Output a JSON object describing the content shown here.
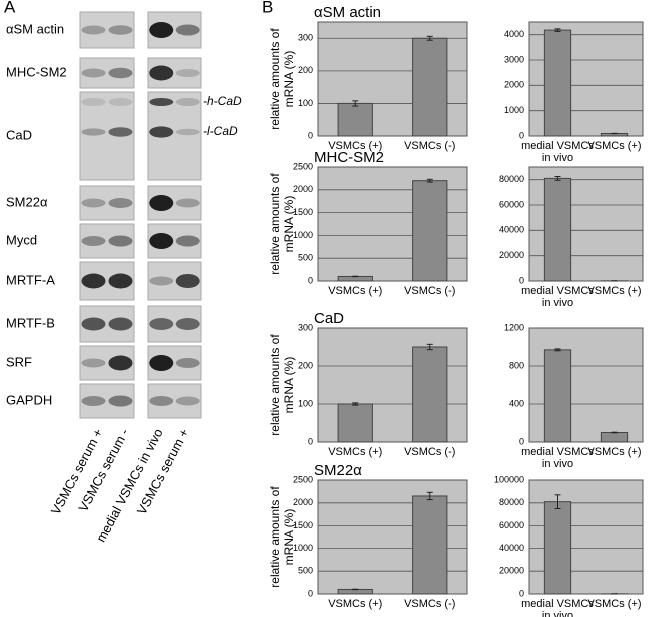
{
  "panel_a": {
    "label": "A",
    "rows": [
      "αSM actin",
      "MHC-SM2",
      "CaD",
      "SM22α",
      "Mycd",
      "MRTF-A",
      "MRTF-B",
      "SRF",
      "GAPDH"
    ],
    "bands": [
      "-h-CaD",
      "-l-CaD"
    ],
    "lanes": [
      "VSMCs serum +",
      "VSMCs serum -",
      "medial VSMCs in vivo",
      "VSMCs serum +"
    ]
  },
  "panel_b_label": "B",
  "chart_data": [
    {
      "type": "bar",
      "title": "αSM actin",
      "ylabel": "relative amounts of mRNA (%)",
      "categories": [
        "VSMCs (+)",
        "VSMCs (-)"
      ],
      "values": [
        100,
        300
      ],
      "errors": [
        8,
        6
      ],
      "ylim": [
        0,
        350
      ],
      "yticks": [
        0,
        100,
        200,
        300
      ]
    },
    {
      "type": "bar",
      "categories": [
        "medial VSMCs in vivo",
        "VSMCs (+)"
      ],
      "values": [
        4180,
        100
      ],
      "errors": [
        50,
        5
      ],
      "ylim": [
        0,
        4500
      ],
      "yticks": [
        0,
        1000,
        2000,
        3000,
        4000
      ]
    },
    {
      "type": "bar",
      "title": "MHC-SM2",
      "ylabel": "relative amounts of mRNA (%)",
      "categories": [
        "VSMCs (+)",
        "VSMCs (-)"
      ],
      "values": [
        100,
        2200
      ],
      "errors": [
        5,
        30
      ],
      "ylim": [
        0,
        2500
      ],
      "yticks": [
        0,
        500,
        1000,
        1500,
        2000,
        2500
      ]
    },
    {
      "type": "bar",
      "categories": [
        "medial VSMCs in vivo",
        "VSMCs (+)"
      ],
      "values": [
        81000,
        100
      ],
      "errors": [
        1500,
        5
      ],
      "ylim": [
        0,
        90000
      ],
      "yticks": [
        0,
        20000,
        40000,
        60000,
        80000
      ]
    },
    {
      "type": "bar",
      "title": "CaD",
      "ylabel": "relative amounts of mRNA (%)",
      "categories": [
        "VSMCs (+)",
        "VSMCs (-)"
      ],
      "values": [
        100,
        250
      ],
      "errors": [
        3,
        7
      ],
      "ylim": [
        0,
        300
      ],
      "yticks": [
        0,
        100,
        200,
        300
      ]
    },
    {
      "type": "bar",
      "categories": [
        "medial VSMCs in vivo",
        "VSMCs (+)"
      ],
      "values": [
        970,
        100
      ],
      "errors": [
        10,
        3
      ],
      "ylim": [
        0,
        1200
      ],
      "yticks": [
        0,
        400,
        800,
        1200
      ]
    },
    {
      "type": "bar",
      "title": "SM22α",
      "ylabel": "relative amounts of mRNA (%)",
      "categories": [
        "VSMCs (+)",
        "VSMCs (-)"
      ],
      "values": [
        100,
        2150
      ],
      "errors": [
        5,
        80
      ],
      "ylim": [
        0,
        2500
      ],
      "yticks": [
        0,
        500,
        1000,
        1500,
        2000,
        2500
      ]
    },
    {
      "type": "bar",
      "categories": [
        "medial VSMCs in vivo",
        "VSMCs (+)"
      ],
      "values": [
        81000,
        100
      ],
      "errors": [
        6000,
        5
      ],
      "ylim": [
        0,
        100000
      ],
      "yticks": [
        0,
        20000,
        40000,
        60000,
        80000,
        100000
      ]
    }
  ]
}
